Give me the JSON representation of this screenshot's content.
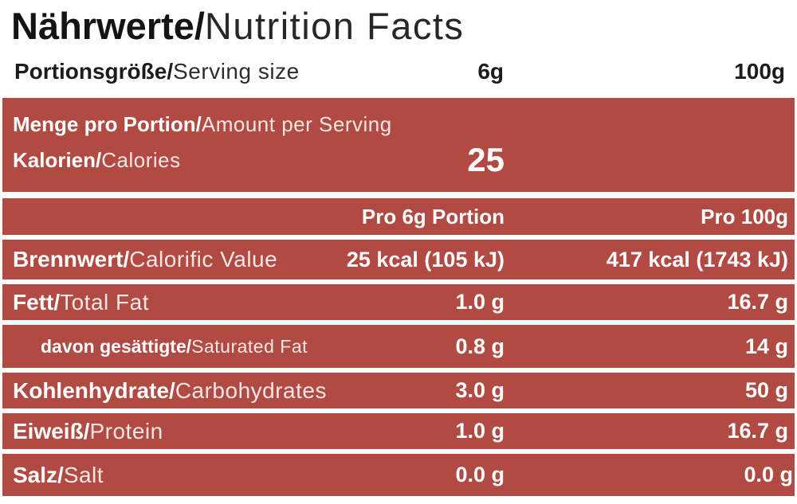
{
  "title": {
    "de": "Nährwerte/",
    "en": "Nutrition Facts"
  },
  "serving": {
    "label_de": "Portionsgröße/",
    "label_en": "Serving size",
    "per_serving": "6g",
    "per_100g": "100g"
  },
  "calories_block": {
    "heading_de": "Menge pro Portion/",
    "heading_en": "Amount per Serving",
    "label_de": "Kalorien/",
    "label_en": "Calories",
    "value": "25"
  },
  "table": {
    "header": {
      "col1": "Pro 6g Portion",
      "col2": "Pro 100g"
    },
    "rows": [
      {
        "de": "Brennwert/",
        "en": "Calorific Value",
        "v1": "25 kcal (105 kJ)",
        "v2": "417 kcal (1743 kJ)",
        "indent": false
      },
      {
        "de": "Fett/",
        "en": "Total Fat",
        "v1": "1.0 g",
        "v2": "16.7 g",
        "indent": false
      },
      {
        "de": "davon gesättigte/",
        "en": "Saturated Fat",
        "v1": "0.8 g",
        "v2": "14 g",
        "indent": true
      },
      {
        "de": "Kohlenhydrate/",
        "en": "Carbohydrates",
        "v1": "3.0 g",
        "v2": "50 g",
        "indent": false
      },
      {
        "de": "Eiweiß/",
        "en": "Protein",
        "v1": "1.0 g",
        "v2": "16.7 g",
        "indent": false
      },
      {
        "de": "Salz/",
        "en": "Salt",
        "v1": "0.0 g",
        "v2": "0.0 g",
        "indent": false
      }
    ]
  },
  "colors": {
    "accent_red": "#b04a42",
    "text_dark": "#1c1c1c",
    "text_on_red": "#ffffff"
  }
}
